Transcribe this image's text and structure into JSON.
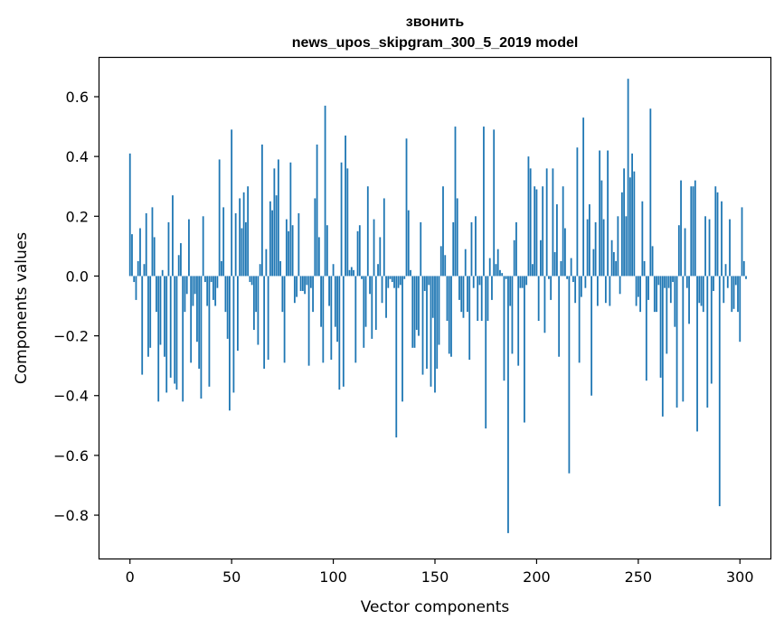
{
  "chart_data": {
    "type": "bar",
    "title_line1": "звонить",
    "title_line2": "news_upos_skipgram_300_5_2019 model",
    "xlabel": "Vector components",
    "ylabel": "Components values",
    "xlim": [
      -15,
      315
    ],
    "ylim": [
      -0.945,
      0.73
    ],
    "x_ticks": [
      0,
      50,
      100,
      150,
      200,
      250,
      300
    ],
    "x_tick_labels": [
      "0",
      "50",
      "100",
      "150",
      "200",
      "250",
      "300"
    ],
    "y_ticks": [
      0.6,
      0.4,
      0.2,
      0.0,
      -0.2,
      -0.4,
      -0.6,
      -0.8
    ],
    "y_tick_labels": [
      "0.6",
      "0.4",
      "0.2",
      "0.0",
      "−0.2",
      "−0.4",
      "−0.6",
      "−0.8"
    ],
    "bar_color": "#1f77b4",
    "grid": false,
    "values": [
      0.41,
      0.14,
      -0.02,
      -0.08,
      0.05,
      0.16,
      -0.33,
      0.04,
      0.21,
      -0.27,
      -0.24,
      0.23,
      0.13,
      -0.12,
      -0.42,
      -0.23,
      0.02,
      -0.27,
      -0.39,
      0.18,
      -0.34,
      0.27,
      -0.36,
      -0.38,
      0.07,
      0.11,
      -0.42,
      -0.12,
      -0.06,
      0.19,
      -0.29,
      -0.1,
      -0.06,
      -0.22,
      -0.31,
      -0.41,
      0.2,
      -0.02,
      -0.1,
      -0.37,
      -0.02,
      -0.08,
      -0.1,
      -0.04,
      0.39,
      0.05,
      0.23,
      -0.12,
      -0.21,
      -0.45,
      0.49,
      -0.39,
      0.21,
      -0.25,
      0.26,
      0.16,
      0.28,
      0.18,
      0.3,
      -0.02,
      -0.03,
      -0.18,
      -0.12,
      -0.23,
      0.04,
      0.44,
      -0.31,
      0.09,
      -0.28,
      0.25,
      0.22,
      0.36,
      0.27,
      0.39,
      0.05,
      -0.12,
      -0.29,
      0.19,
      0.15,
      0.38,
      0.17,
      -0.09,
      -0.07,
      0.21,
      -0.05,
      -0.05,
      -0.06,
      -0.03,
      -0.3,
      -0.04,
      -0.12,
      0.26,
      0.44,
      0.13,
      -0.17,
      -0.29,
      0.57,
      0.17,
      -0.1,
      -0.28,
      0.04,
      -0.17,
      -0.22,
      -0.38,
      0.38,
      -0.37,
      0.47,
      0.36,
      0.02,
      0.03,
      0.02,
      -0.29,
      0.15,
      0.17,
      -0.01,
      -0.24,
      -0.17,
      0.3,
      -0.06,
      -0.21,
      0.19,
      -0.18,
      0.04,
      0.13,
      -0.09,
      0.26,
      -0.14,
      -0.04,
      -0.01,
      -0.02,
      -0.04,
      -0.54,
      -0.04,
      -0.03,
      -0.42,
      -0.01,
      0.46,
      0.22,
      0.02,
      -0.24,
      -0.24,
      -0.18,
      -0.2,
      0.18,
      -0.33,
      -0.05,
      -0.31,
      -0.03,
      -0.37,
      -0.14,
      -0.39,
      -0.31,
      -0.23,
      0.1,
      0.3,
      0.07,
      -0.15,
      -0.26,
      -0.27,
      0.18,
      0.5,
      0.26,
      -0.08,
      -0.12,
      -0.14,
      0.09,
      -0.12,
      -0.28,
      0.18,
      -0.04,
      0.2,
      -0.15,
      -0.03,
      -0.15,
      0.5,
      -0.51,
      -0.15,
      0.06,
      -0.08,
      0.49,
      0.04,
      0.09,
      0.02,
      0.01,
      -0.35,
      -0.01,
      -0.86,
      -0.1,
      -0.26,
      0.12,
      0.18,
      -0.3,
      -0.04,
      -0.04,
      -0.49,
      -0.03,
      0.4,
      0.36,
      0.04,
      0.3,
      0.29,
      -0.15,
      0.12,
      0.3,
      -0.19,
      0.36,
      -0.01,
      -0.08,
      0.36,
      0.08,
      0.24,
      -0.27,
      0.05,
      0.3,
      0.16,
      -0.01,
      -0.66,
      0.06,
      -0.02,
      -0.09,
      0.43,
      -0.29,
      -0.07,
      0.53,
      -0.04,
      0.19,
      0.24,
      -0.4,
      0.09,
      0.18,
      -0.1,
      0.42,
      0.32,
      0.19,
      -0.09,
      0.42,
      -0.1,
      0.12,
      0.08,
      0.05,
      0.2,
      -0.06,
      0.28,
      0.36,
      0.2,
      0.66,
      0.33,
      0.41,
      0.35,
      -0.1,
      -0.07,
      -0.12,
      0.25,
      0.05,
      -0.35,
      -0.08,
      0.56,
      0.1,
      -0.12,
      -0.12,
      -0.03,
      -0.34,
      -0.47,
      -0.04,
      -0.26,
      -0.04,
      -0.09,
      -0.02,
      -0.17,
      -0.44,
      0.17,
      0.32,
      -0.42,
      0.16,
      -0.04,
      -0.16,
      0.3,
      0.3,
      0.32,
      -0.52,
      -0.09,
      -0.1,
      -0.12,
      0.2,
      -0.44,
      0.19,
      -0.36,
      -0.05,
      0.3,
      0.28,
      -0.77,
      0.25,
      -0.09,
      0.04,
      -0.04,
      0.19,
      -0.12,
      -0.11,
      -0.03,
      -0.12,
      -0.22,
      0.23,
      0.05,
      -0.01
    ]
  }
}
